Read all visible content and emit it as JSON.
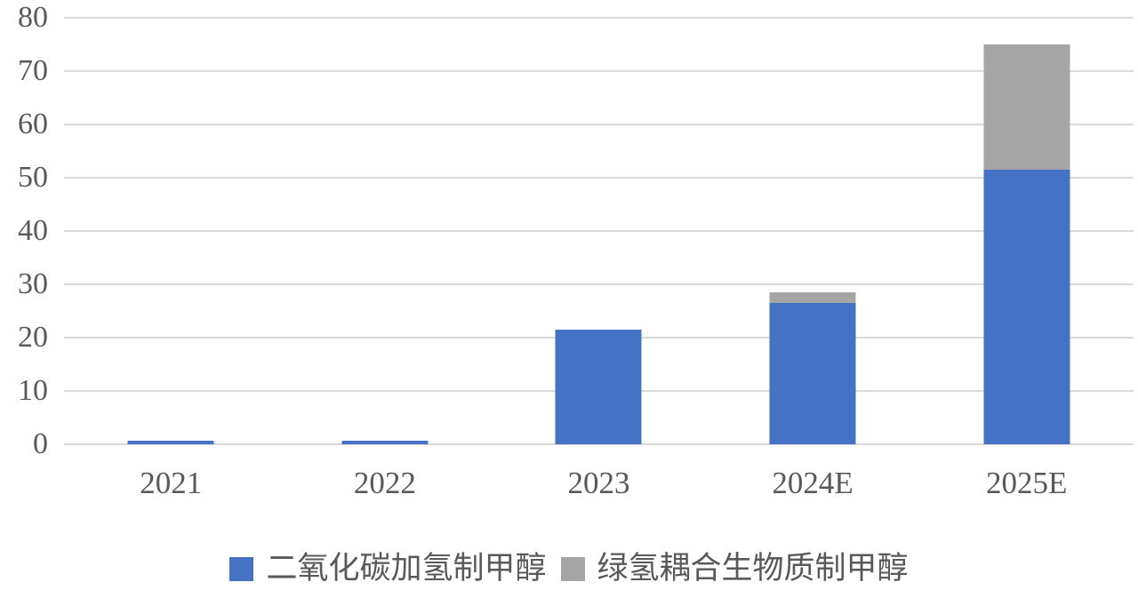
{
  "chart_data": {
    "type": "bar",
    "stacked": true,
    "title": "",
    "xlabel": "",
    "ylabel": "",
    "categories": [
      "2021",
      "2022",
      "2023",
      "2024E",
      "2025E"
    ],
    "series": [
      {
        "name": "二氧化碳加氢制甲醇",
        "color": "#4472C4",
        "values": [
          0.6,
          0.7,
          21.5,
          26.5,
          51.5
        ]
      },
      {
        "name": "绿氢耦合生物质制甲醇",
        "color": "#A5A5A5",
        "values": [
          0,
          0,
          0,
          2,
          23.5
        ]
      }
    ],
    "ylim": [
      0,
      80
    ],
    "yticks": [
      0,
      10,
      20,
      30,
      40,
      50,
      60,
      70,
      80
    ],
    "grid": true,
    "legend_position": "bottom"
  },
  "colors": {
    "series_blue": "#4472C4",
    "series_gray": "#A5A5A5",
    "gridline": "#D9D9D9",
    "text": "#595959",
    "background": "#FFFFFF"
  }
}
